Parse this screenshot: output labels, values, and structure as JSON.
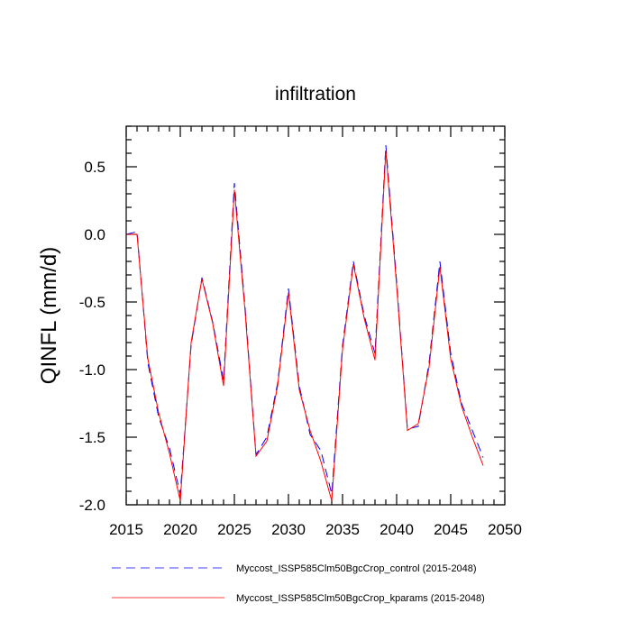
{
  "chart_data": {
    "type": "line",
    "title": "infiltration",
    "xlabel": "",
    "ylabel": "QINFL  (mm/d)",
    "xlim": [
      2015,
      2050
    ],
    "ylim": [
      -2.0,
      0.8
    ],
    "xticks": [
      2015,
      2020,
      2025,
      2030,
      2035,
      2040,
      2045,
      2050
    ],
    "xtick_labels": [
      "2015",
      "2020",
      "2025",
      "2030",
      "2035",
      "2040",
      "2045",
      "2050"
    ],
    "yticks": [
      -2.0,
      -1.5,
      -1.0,
      -0.5,
      0.0,
      0.5
    ],
    "ytick_labels": [
      "-2.0",
      "-1.5",
      "-1.0",
      "-0.5",
      "0.0",
      "0.5"
    ],
    "x": [
      2015,
      2016,
      2017,
      2018,
      2019,
      2020,
      2021,
      2022,
      2023,
      2024,
      2025,
      2026,
      2027,
      2028,
      2029,
      2030,
      2031,
      2032,
      2033,
      2034,
      2035,
      2036,
      2037,
      2038,
      2039,
      2040,
      2041,
      2042,
      2043,
      2044,
      2045,
      2046,
      2047,
      2048
    ],
    "series": [
      {
        "name": "Myccost_ISSP585Clm50BgcCrop_control (2015-2048)",
        "color": "#0000ff",
        "dash": "dashed",
        "values": [
          0.0,
          0.02,
          -0.95,
          -1.35,
          -1.58,
          -1.92,
          -0.82,
          -0.32,
          -0.65,
          -1.08,
          0.38,
          -0.55,
          -1.63,
          -1.5,
          -1.1,
          -0.4,
          -1.12,
          -1.48,
          -1.6,
          -1.92,
          -0.82,
          -0.2,
          -0.6,
          -0.88,
          0.66,
          -0.35,
          -1.44,
          -1.42,
          -0.95,
          -0.2,
          -0.88,
          -1.25,
          -1.45,
          -1.65
        ]
      },
      {
        "name": "Myccost_ISSP585Clm50BgcCrop_kparams (2015-2048)",
        "color": "#ff0000",
        "dash": "solid",
        "values": [
          0.0,
          0.0,
          -0.92,
          -1.32,
          -1.62,
          -1.97,
          -0.8,
          -0.33,
          -0.66,
          -1.12,
          0.33,
          -0.58,
          -1.64,
          -1.53,
          -1.12,
          -0.43,
          -1.15,
          -1.45,
          -1.68,
          -1.97,
          -0.85,
          -0.22,
          -0.62,
          -0.93,
          0.62,
          -0.38,
          -1.45,
          -1.4,
          -0.98,
          -0.24,
          -0.92,
          -1.27,
          -1.5,
          -1.71
        ]
      }
    ],
    "legend": {
      "placement": "bottom",
      "entries": [
        "Myccost_ISSP585Clm50BgcCrop_control (2015-2048)",
        "Myccost_ISSP585Clm50BgcCrop_kparams (2015-2048)"
      ]
    }
  }
}
